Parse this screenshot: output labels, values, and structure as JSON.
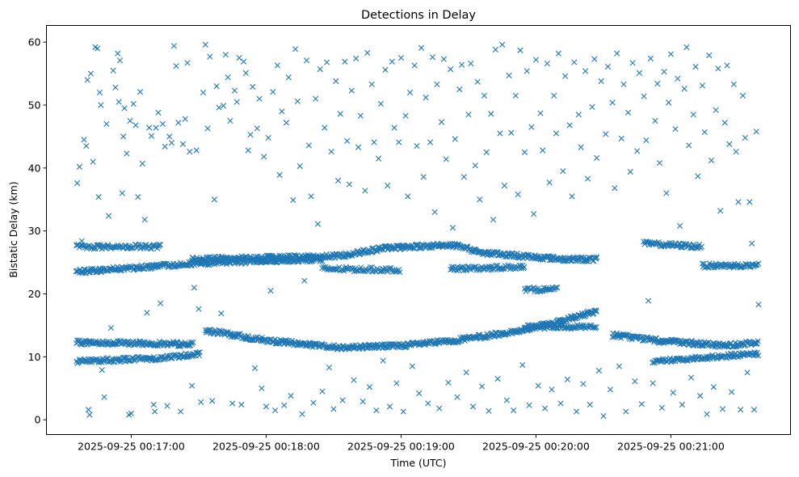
{
  "chart_data": {
    "type": "scatter",
    "title": "Detections in Delay",
    "xlabel": "Time (UTC)",
    "ylabel": "Bistatic Delay (km)",
    "x_units": "seconds after 2025-09-25 00:00:00 UTC",
    "xlim": [
      982.3,
      1313.2
    ],
    "ylim": [
      -2.35,
      62.65
    ],
    "grid": false,
    "marker": "x",
    "color": "#1f77b4",
    "xticks": [
      {
        "value": 1020,
        "label": "2025-09-25 00:17:00"
      },
      {
        "value": 1080,
        "label": "2025-09-25 00:18:00"
      },
      {
        "value": 1140,
        "label": "2025-09-25 00:19:00"
      },
      {
        "value": 1200,
        "label": "2025-09-25 00:20:00"
      },
      {
        "value": 1260,
        "label": "2025-09-25 00:21:00"
      }
    ],
    "yticks": [
      {
        "value": 0,
        "label": "0"
      },
      {
        "value": 10,
        "label": "10"
      },
      {
        "value": 20,
        "label": "20"
      },
      {
        "value": 30,
        "label": "30"
      },
      {
        "value": 40,
        "label": "40"
      },
      {
        "value": 50,
        "label": "50"
      },
      {
        "value": 60,
        "label": "60"
      }
    ],
    "tracks": [
      {
        "name": "track-a1",
        "step": 0.35,
        "points": [
          [
            995.6,
            12.3
          ],
          [
            1047.7,
            12.0
          ]
        ]
      },
      {
        "name": "track-a2",
        "step": 0.35,
        "points": [
          [
            1053,
            14.2
          ],
          [
            1080,
            12.6
          ],
          [
            1112,
            11.5
          ],
          [
            1141,
            11.8
          ],
          [
            1162,
            12.5
          ],
          [
            1191,
            14.0
          ],
          [
            1213,
            15.8
          ],
          [
            1227,
            17.3
          ]
        ]
      },
      {
        "name": "track-a3",
        "step": 0.35,
        "points": [
          [
            1234,
            13.5
          ],
          [
            1256,
            12.5
          ],
          [
            1284,
            11.8
          ],
          [
            1299,
            12.3
          ]
        ]
      },
      {
        "name": "track-c1",
        "step": 0.4,
        "points": [
          [
            995.6,
            9.3
          ],
          [
            1033,
            9.8
          ],
          [
            1051,
            10.5
          ]
        ]
      },
      {
        "name": "track-c2",
        "step": 0.4,
        "points": [
          [
            1252,
            9.3
          ],
          [
            1299,
            10.5
          ]
        ]
      },
      {
        "name": "track-d",
        "step": 0.45,
        "points": [
          [
            1195,
            14.7
          ],
          [
            1227,
            14.8
          ]
        ]
      },
      {
        "name": "track-e",
        "step": 0.35,
        "points": [
          [
            995.6,
            23.5
          ],
          [
            1047,
            24.8
          ],
          [
            1080,
            25.3
          ],
          [
            1105,
            25.5
          ]
        ]
      },
      {
        "name": "track-f",
        "step": 0.45,
        "points": [
          [
            995.6,
            27.5
          ],
          [
            1033,
            27.5
          ]
        ]
      },
      {
        "name": "track-g",
        "step": 0.35,
        "points": [
          [
            1047,
            25.5
          ],
          [
            1112,
            26.0
          ],
          [
            1133,
            27.3
          ],
          [
            1162,
            27.8
          ],
          [
            1177,
            26.5
          ],
          [
            1213,
            25.5
          ],
          [
            1227,
            25.5
          ]
        ]
      },
      {
        "name": "track-h",
        "step": 0.45,
        "points": [
          [
            1162,
            24.0
          ],
          [
            1195,
            24.3
          ]
        ]
      },
      {
        "name": "track-i",
        "step": 0.4,
        "points": [
          [
            1248,
            28.0
          ],
          [
            1274,
            27.5
          ]
        ]
      },
      {
        "name": "track-j",
        "step": 0.4,
        "points": [
          [
            1274,
            24.5
          ],
          [
            1299,
            24.5
          ]
        ]
      },
      {
        "name": "track-k",
        "step": 0.5,
        "points": [
          [
            1105,
            24.0
          ],
          [
            1140,
            23.8
          ]
        ]
      },
      {
        "name": "track-l",
        "step": 0.5,
        "points": [
          [
            1195,
            20.7
          ],
          [
            1210,
            20.7
          ]
        ]
      }
    ],
    "scatter_points": [
      [
        996,
        37.6
      ],
      [
        997,
        40.2
      ],
      [
        998,
        28.4
      ],
      [
        999,
        44.5
      ],
      [
        1000,
        43.5
      ],
      [
        1000.5,
        54
      ],
      [
        1001,
        1.6
      ],
      [
        1001.5,
        0.8
      ],
      [
        1002,
        55
      ],
      [
        1003,
        41
      ],
      [
        1004,
        59.2
      ],
      [
        1005,
        59
      ],
      [
        1005.5,
        35.4
      ],
      [
        1006,
        52
      ],
      [
        1006.5,
        50
      ],
      [
        1007,
        7.9
      ],
      [
        1008,
        3.6
      ],
      [
        1009,
        47
      ],
      [
        1010,
        32.4
      ],
      [
        1011,
        14.6
      ],
      [
        1012,
        55.5
      ],
      [
        1013,
        52.8
      ],
      [
        1014,
        58.2
      ],
      [
        1014.5,
        50.5
      ],
      [
        1015,
        57.1
      ],
      [
        1016,
        36
      ],
      [
        1016.5,
        45
      ],
      [
        1017,
        49.5
      ],
      [
        1018,
        42.3
      ],
      [
        1019,
        0.8
      ],
      [
        1019.5,
        47.5
      ],
      [
        1020,
        1
      ],
      [
        1021,
        50.2
      ],
      [
        1022,
        46.8
      ],
      [
        1023,
        35.4
      ],
      [
        1024,
        52.1
      ],
      [
        1025,
        40.7
      ],
      [
        1026,
        31.8
      ],
      [
        1027,
        17
      ],
      [
        1028,
        46.4
      ],
      [
        1029,
        45.1
      ],
      [
        1030,
        2.4
      ],
      [
        1030.5,
        1.3
      ],
      [
        1031,
        46.4
      ],
      [
        1032,
        48.8
      ],
      [
        1033,
        18.5
      ],
      [
        1034,
        47
      ],
      [
        1035,
        43.4
      ],
      [
        1036,
        2.2
      ],
      [
        1037,
        45
      ],
      [
        1038,
        44
      ],
      [
        1039,
        59.4
      ],
      [
        1040,
        56.2
      ],
      [
        1041,
        47.2
      ],
      [
        1042,
        1.3
      ],
      [
        1043,
        43.8
      ],
      [
        1044,
        47.8
      ],
      [
        1045,
        56.7
      ],
      [
        1046,
        42.6
      ],
      [
        1047,
        5.4
      ],
      [
        1048,
        21
      ],
      [
        1049,
        42.8
      ],
      [
        1050,
        17.6
      ],
      [
        1051,
        2.8
      ],
      [
        1052,
        52
      ],
      [
        1053,
        59.6
      ],
      [
        1054,
        46.3
      ],
      [
        1055,
        57.7
      ],
      [
        1056,
        3
      ],
      [
        1057,
        35
      ],
      [
        1058,
        53
      ],
      [
        1059,
        49.6
      ],
      [
        1060,
        16.9
      ],
      [
        1061,
        49.9
      ],
      [
        1062,
        58
      ],
      [
        1063,
        54.4
      ],
      [
        1064,
        47.5
      ],
      [
        1065,
        2.6
      ],
      [
        1066,
        52.3
      ],
      [
        1067,
        50.5
      ],
      [
        1068,
        57.5
      ],
      [
        1069,
        2.4
      ],
      [
        1070,
        56.9
      ],
      [
        1071,
        55.1
      ],
      [
        1072,
        42.8
      ],
      [
        1073,
        45.3
      ],
      [
        1074,
        52.9
      ],
      [
        1075,
        8.2
      ],
      [
        1076,
        46.3
      ],
      [
        1077,
        51
      ],
      [
        1078,
        5
      ],
      [
        1079,
        41.8
      ],
      [
        1080,
        2.1
      ],
      [
        1081,
        44.8
      ],
      [
        1082,
        20.5
      ],
      [
        1083,
        52.1
      ],
      [
        1084,
        1.5
      ],
      [
        1085,
        56.3
      ],
      [
        1086,
        38.9
      ],
      [
        1087,
        49
      ],
      [
        1088,
        2.3
      ],
      [
        1089,
        47.2
      ],
      [
        1090,
        54.4
      ],
      [
        1091,
        3.8
      ],
      [
        1092,
        34.9
      ],
      [
        1093,
        58.9
      ],
      [
        1094,
        50.6
      ],
      [
        1095,
        40.3
      ],
      [
        1096,
        0.9
      ],
      [
        1097,
        22.1
      ],
      [
        1098,
        57.1
      ],
      [
        1099,
        43.6
      ],
      [
        1100,
        35.5
      ],
      [
        1101,
        2.7
      ],
      [
        1102,
        51
      ],
      [
        1103,
        31.1
      ],
      [
        1104,
        55.7
      ],
      [
        1105,
        4.5
      ],
      [
        1106,
        46.4
      ],
      [
        1107,
        56.8
      ],
      [
        1108,
        8.3
      ],
      [
        1109,
        42.6
      ],
      [
        1110,
        1.7
      ],
      [
        1111,
        53.8
      ],
      [
        1112,
        38
      ],
      [
        1113,
        48.6
      ],
      [
        1114,
        3.1
      ],
      [
        1115,
        56.9
      ],
      [
        1116,
        44.3
      ],
      [
        1117,
        37.4
      ],
      [
        1118,
        52.3
      ],
      [
        1119,
        6.3
      ],
      [
        1120,
        57.4
      ],
      [
        1121,
        43.3
      ],
      [
        1122,
        48.3
      ],
      [
        1123,
        2.9
      ],
      [
        1124,
        36.4
      ],
      [
        1125,
        58.3
      ],
      [
        1126,
        5.2
      ],
      [
        1127,
        53.3
      ],
      [
        1128,
        44.1
      ],
      [
        1129,
        1.5
      ],
      [
        1130,
        41.5
      ],
      [
        1131,
        50.2
      ],
      [
        1132,
        9.4
      ],
      [
        1133,
        55.6
      ],
      [
        1134,
        37.2
      ],
      [
        1135,
        2.1
      ],
      [
        1136,
        56.9
      ],
      [
        1137,
        46.4
      ],
      [
        1138,
        5.8
      ],
      [
        1139,
        44.1
      ],
      [
        1140,
        57.5
      ],
      [
        1141,
        1.3
      ],
      [
        1142,
        48.3
      ],
      [
        1143,
        35.5
      ],
      [
        1144,
        52
      ],
      [
        1145,
        8.5
      ],
      [
        1146,
        56.3
      ],
      [
        1147,
        43.5
      ],
      [
        1148,
        4.2
      ],
      [
        1149,
        59.1
      ],
      [
        1150,
        38.6
      ],
      [
        1151,
        51.2
      ],
      [
        1152,
        2.6
      ],
      [
        1153,
        44.1
      ],
      [
        1154,
        57.6
      ],
      [
        1155,
        33
      ],
      [
        1156,
        53.3
      ],
      [
        1157,
        1.8
      ],
      [
        1158,
        47.3
      ],
      [
        1159,
        57.3
      ],
      [
        1160,
        41.4
      ],
      [
        1161,
        5.9
      ],
      [
        1162,
        55.7
      ],
      [
        1163,
        30.5
      ],
      [
        1164,
        44.6
      ],
      [
        1165,
        3.6
      ],
      [
        1166,
        52.5
      ],
      [
        1167,
        56.4
      ],
      [
        1168,
        38.6
      ],
      [
        1169,
        7.5
      ],
      [
        1170,
        48.5
      ],
      [
        1171,
        56.6
      ],
      [
        1172,
        2.1
      ],
      [
        1173,
        40.4
      ],
      [
        1174,
        53.7
      ],
      [
        1175,
        35
      ],
      [
        1176,
        5.3
      ],
      [
        1177,
        51.5
      ],
      [
        1178,
        42.5
      ],
      [
        1179,
        1.4
      ],
      [
        1180,
        48.6
      ],
      [
        1181,
        31.8
      ],
      [
        1182,
        58.8
      ],
      [
        1183,
        6.5
      ],
      [
        1184,
        45.5
      ],
      [
        1185,
        59.6
      ],
      [
        1186,
        37.2
      ],
      [
        1187,
        3.1
      ],
      [
        1188,
        54.7
      ],
      [
        1189,
        45.6
      ],
      [
        1190,
        1.5
      ],
      [
        1191,
        51.5
      ],
      [
        1192,
        35.8
      ],
      [
        1193,
        58.7
      ],
      [
        1194,
        8.7
      ],
      [
        1195,
        42.5
      ],
      [
        1196,
        55.4
      ],
      [
        1197,
        2.3
      ],
      [
        1198,
        46.5
      ],
      [
        1199,
        32.7
      ],
      [
        1200,
        57.2
      ],
      [
        1201,
        5.4
      ],
      [
        1202,
        48.7
      ],
      [
        1203,
        42.8
      ],
      [
        1204,
        1.8
      ],
      [
        1205,
        56.6
      ],
      [
        1206,
        37.7
      ],
      [
        1207,
        4.8
      ],
      [
        1208,
        51.5
      ],
      [
        1209,
        45.5
      ],
      [
        1210,
        58.2
      ],
      [
        1211,
        2.6
      ],
      [
        1212,
        39.5
      ],
      [
        1213,
        54.6
      ],
      [
        1214,
        6.4
      ],
      [
        1215,
        46.8
      ],
      [
        1216,
        35.5
      ],
      [
        1217,
        56.8
      ],
      [
        1218,
        1.3
      ],
      [
        1219,
        48.5
      ],
      [
        1220,
        43.3
      ],
      [
        1221,
        5.7
      ],
      [
        1222,
        55.4
      ],
      [
        1223,
        38.3
      ],
      [
        1224,
        2.4
      ],
      [
        1225,
        49.7
      ],
      [
        1226,
        57.3
      ],
      [
        1227,
        41.6
      ],
      [
        1228,
        7.8
      ],
      [
        1229,
        53.8
      ],
      [
        1230,
        0.6
      ],
      [
        1231,
        45.4
      ],
      [
        1232,
        56.1
      ],
      [
        1233,
        4.8
      ],
      [
        1234,
        50.4
      ],
      [
        1235,
        36.8
      ],
      [
        1236,
        58.2
      ],
      [
        1237,
        8.5
      ],
      [
        1238,
        44.7
      ],
      [
        1239,
        53.3
      ],
      [
        1240,
        1.3
      ],
      [
        1241,
        48.8
      ],
      [
        1242,
        39.4
      ],
      [
        1243,
        56.7
      ],
      [
        1244,
        6.1
      ],
      [
        1245,
        42.7
      ],
      [
        1246,
        55.1
      ],
      [
        1247,
        2.5
      ],
      [
        1248,
        51.4
      ],
      [
        1249,
        44.4
      ],
      [
        1250,
        18.9
      ],
      [
        1251,
        57.4
      ],
      [
        1252,
        5.8
      ],
      [
        1253,
        47.5
      ],
      [
        1254,
        53.4
      ],
      [
        1255,
        40.8
      ],
      [
        1256,
        1.9
      ],
      [
        1257,
        55.3
      ],
      [
        1258,
        36
      ],
      [
        1259,
        50.4
      ],
      [
        1260,
        58.1
      ],
      [
        1261,
        4.3
      ],
      [
        1262,
        46.2
      ],
      [
        1263,
        54.2
      ],
      [
        1264,
        30.8
      ],
      [
        1265,
        2.4
      ],
      [
        1266,
        52.6
      ],
      [
        1267,
        59.2
      ],
      [
        1268,
        43.6
      ],
      [
        1269,
        6.7
      ],
      [
        1270,
        48.5
      ],
      [
        1271,
        56.1
      ],
      [
        1272,
        38.7
      ],
      [
        1273,
        3.8
      ],
      [
        1274,
        53.1
      ],
      [
        1275,
        45.7
      ],
      [
        1276,
        0.9
      ],
      [
        1277,
        57.9
      ],
      [
        1278,
        41.2
      ],
      [
        1279,
        5.2
      ],
      [
        1280,
        49.2
      ],
      [
        1281,
        55.8
      ],
      [
        1282,
        33.2
      ],
      [
        1283,
        1.7
      ],
      [
        1284,
        47.2
      ],
      [
        1285,
        56.3
      ],
      [
        1286,
        43.8
      ],
      [
        1287,
        4.4
      ],
      [
        1288,
        53.3
      ],
      [
        1289,
        42.6
      ],
      [
        1290,
        34.6
      ],
      [
        1291,
        1.6
      ],
      [
        1292,
        51.5
      ],
      [
        1293,
        44.8
      ],
      [
        1294,
        7.5
      ],
      [
        1295,
        34.6
      ],
      [
        1296,
        28
      ],
      [
        1297,
        1.6
      ],
      [
        1298,
        45.8
      ],
      [
        1299,
        18.3
      ]
    ]
  }
}
